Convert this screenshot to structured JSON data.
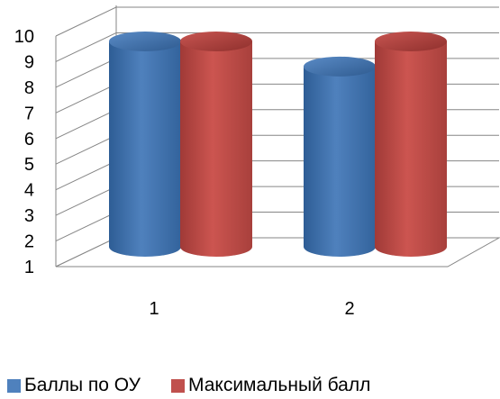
{
  "chart_data": {
    "type": "bar",
    "style": "3d-cylinder",
    "categories": [
      "1",
      "2"
    ],
    "series": [
      {
        "name": "Баллы по ОУ",
        "values": [
          10,
          8.9
        ],
        "color": "#4f81bd"
      },
      {
        "name": "Максимальный балл",
        "values": [
          10,
          10
        ],
        "color": "#c0504d"
      }
    ],
    "y_ticks": [
      "1",
      "2",
      "3",
      "4",
      "5",
      "6",
      "7",
      "8",
      "9",
      "10"
    ],
    "ylim": [
      1,
      10
    ],
    "grid": true,
    "legend_position": "bottom-left"
  }
}
